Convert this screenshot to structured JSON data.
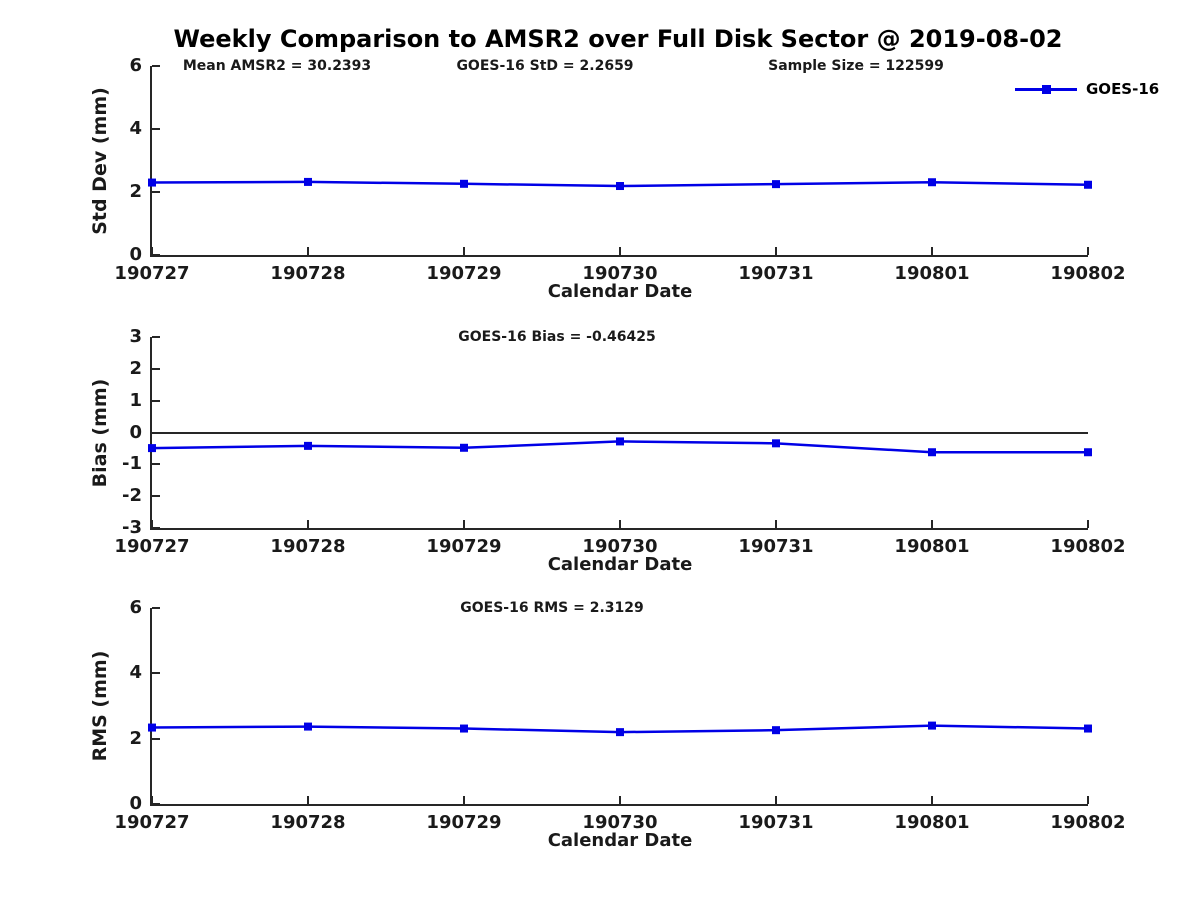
{
  "title": "Weekly Comparison to AMSR2 over Full Disk Sector @ 2019-08-02",
  "legend": {
    "label": "GOES-16",
    "position": "top-right-outside"
  },
  "colors": {
    "line": "#0000E6",
    "axis": "#262626",
    "text": "#1a1a1a",
    "title": "#000000"
  },
  "chart_data": [
    {
      "type": "line",
      "ylabel": "Std Dev (mm)",
      "xlabel": "Calendar Date",
      "annotations": [
        "Mean AMSR2 = 30.2393",
        "GOES-16 StD = 2.2659",
        "Sample Size = 122599"
      ],
      "categories": [
        "190727",
        "190728",
        "190729",
        "190730",
        "190731",
        "190801",
        "190802"
      ],
      "series": [
        {
          "name": "GOES-16",
          "values": [
            2.3,
            2.32,
            2.26,
            2.19,
            2.25,
            2.31,
            2.23
          ]
        }
      ],
      "ylim": [
        0,
        6
      ],
      "yticks": [
        0,
        2,
        4,
        6
      ],
      "zero_line": false,
      "grid": false,
      "marker": "square",
      "line_color": "#0000E6"
    },
    {
      "type": "line",
      "ylabel": "Bias (mm)",
      "xlabel": "Calendar Date",
      "annotations": [
        "GOES-16 Bias  = -0.46425"
      ],
      "categories": [
        "190727",
        "190728",
        "190729",
        "190730",
        "190731",
        "190801",
        "190802"
      ],
      "series": [
        {
          "name": "GOES-16",
          "values": [
            -0.49,
            -0.42,
            -0.48,
            -0.28,
            -0.34,
            -0.62,
            -0.62
          ]
        }
      ],
      "ylim": [
        -3,
        3
      ],
      "yticks": [
        -3,
        -2,
        -1,
        0,
        1,
        2,
        3
      ],
      "zero_line": true,
      "grid": false,
      "marker": "square",
      "line_color": "#0000E6"
    },
    {
      "type": "line",
      "ylabel": "RMS (mm)",
      "xlabel": "Calendar Date",
      "annotations": [
        "GOES-16 RMS = 2.3129"
      ],
      "categories": [
        "190727",
        "190728",
        "190729",
        "190730",
        "190731",
        "190801",
        "190802"
      ],
      "series": [
        {
          "name": "GOES-16",
          "values": [
            2.34,
            2.37,
            2.31,
            2.2,
            2.26,
            2.4,
            2.31
          ]
        }
      ],
      "ylim": [
        0,
        6
      ],
      "yticks": [
        0,
        2,
        4,
        6
      ],
      "zero_line": false,
      "grid": false,
      "marker": "square",
      "line_color": "#0000E6"
    }
  ]
}
